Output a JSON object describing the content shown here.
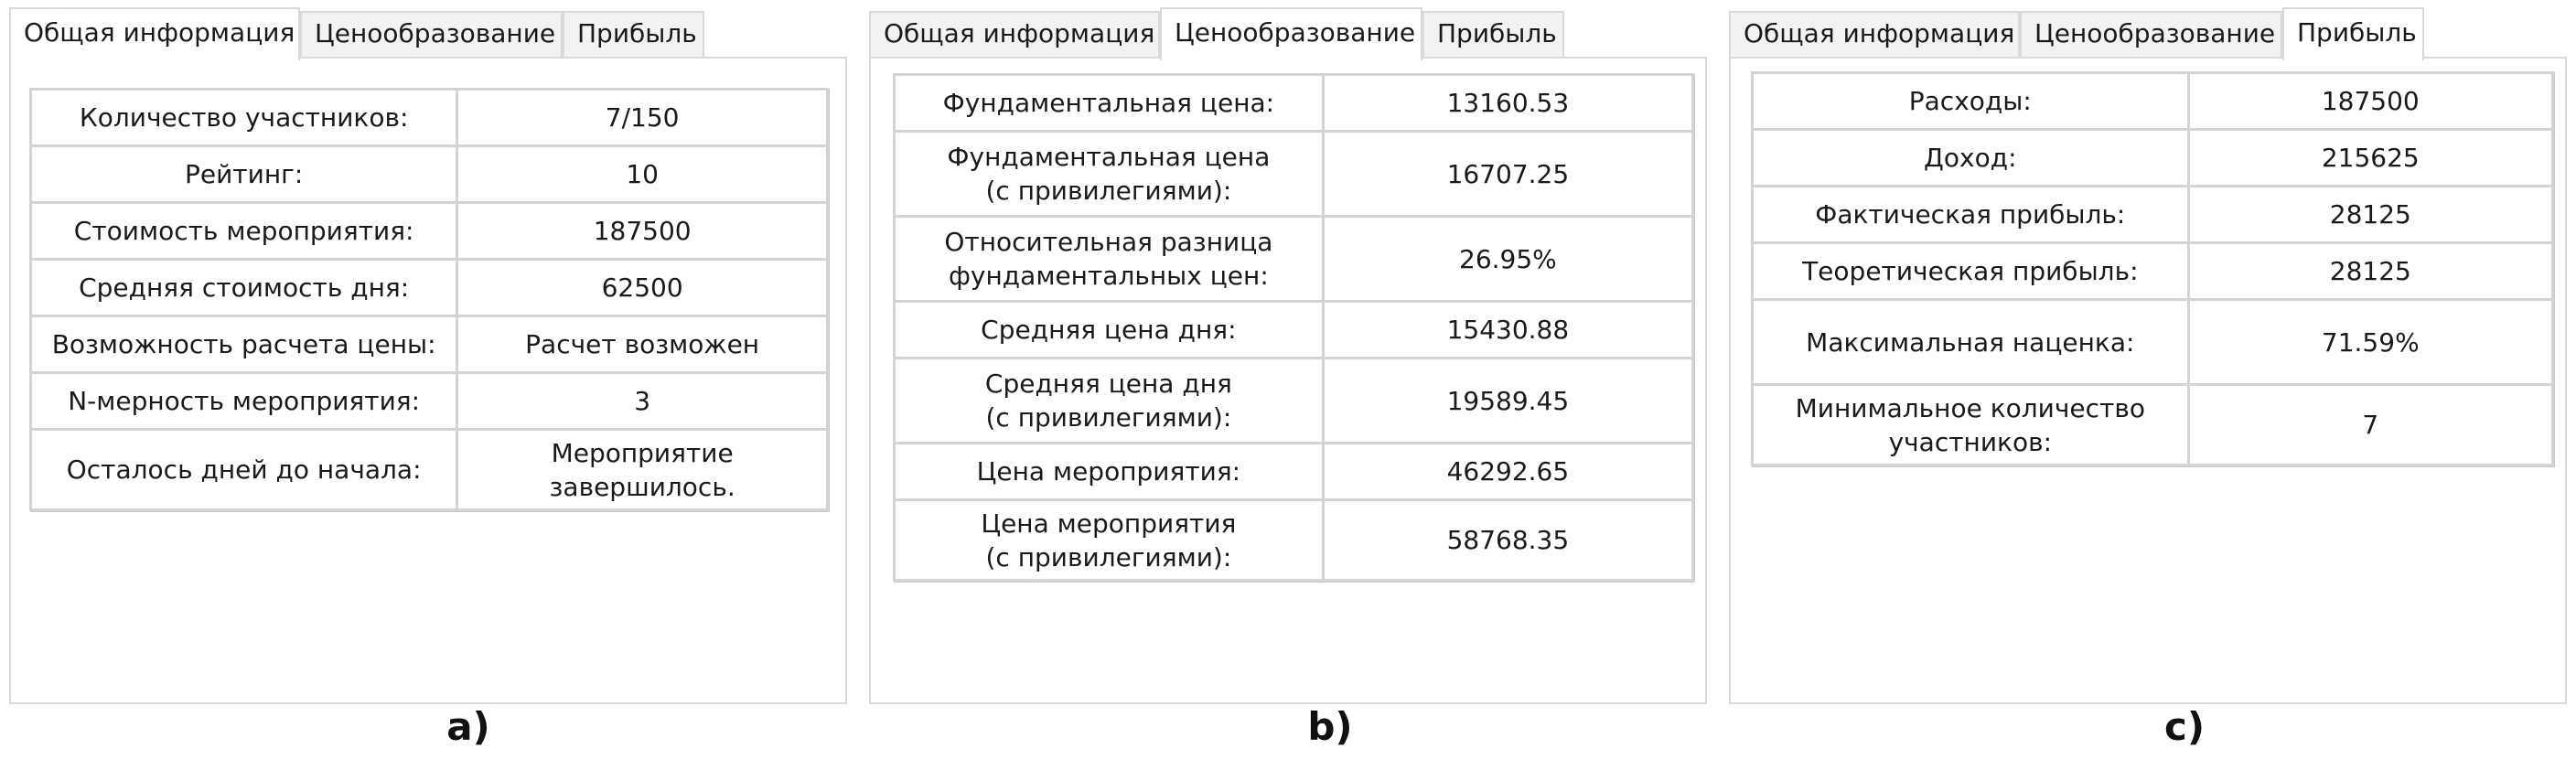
{
  "tabs": [
    "Общая информация",
    "Ценообразование",
    "Прибыль"
  ],
  "panel_a": {
    "active_tab": "Общая информация",
    "rows": [
      {
        "label": "Количество участников:",
        "value": "7/150"
      },
      {
        "label": "Рейтинг:",
        "value": "10"
      },
      {
        "label": "Стоимость мероприятия:",
        "value": "187500"
      },
      {
        "label": "Средняя стоимость дня:",
        "value": "62500"
      },
      {
        "label": "Возможность расчета цены:",
        "value": "Расчет возможен"
      },
      {
        "label": "N-мерность мероприятия:",
        "value": "3"
      },
      {
        "label": "Осталось дней до начала:",
        "value": "Мероприятие\nзавершилось."
      }
    ],
    "caption": "a)"
  },
  "panel_b": {
    "active_tab": "Ценообразование",
    "rows": [
      {
        "label": "Фундаментальная цена:",
        "value": "13160.53"
      },
      {
        "label": "Фундаментальная цена\n(с привилегиями):",
        "value": "16707.25"
      },
      {
        "label": "Относительная разница\nфундаментальных цен:",
        "value": "26.95%"
      },
      {
        "label": "Средняя цена дня:",
        "value": "15430.88"
      },
      {
        "label": "Средняя цена дня\n(с привилегиями):",
        "value": "19589.45"
      },
      {
        "label": "Цена мероприятия:",
        "value": "46292.65"
      },
      {
        "label": "Цена мероприятия\n(с привилегиями):",
        "value": "58768.35"
      }
    ],
    "caption": "b)"
  },
  "panel_c": {
    "active_tab": "Прибыль",
    "rows": [
      {
        "label": "Расходы:",
        "value": "187500"
      },
      {
        "label": "Доход:",
        "value": "215625"
      },
      {
        "label": "Фактическая прибыль:",
        "value": "28125"
      },
      {
        "label": "Теоретическая прибыль:",
        "value": "28125"
      },
      {
        "label": "Максимальная наценка:",
        "value": "71.59%"
      },
      {
        "label": "Минимальное количество\nучастников:",
        "value": "7"
      }
    ],
    "caption": "c)"
  }
}
